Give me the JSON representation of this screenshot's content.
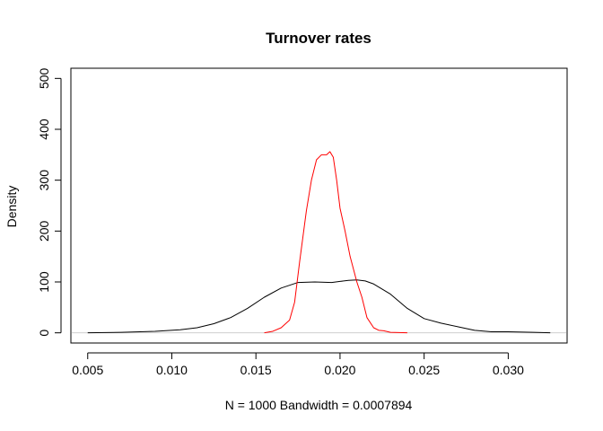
{
  "chart_data": {
    "type": "line",
    "title": "Turnover rates",
    "xlabel": "N = 1000   Bandwidth = 0.0007894",
    "ylabel": "Density",
    "xlim": [
      0.004,
      0.0335
    ],
    "ylim": [
      -20,
      520
    ],
    "x_ticks": [
      0.005,
      0.01,
      0.015,
      0.02,
      0.025,
      0.03
    ],
    "x_tick_labels": [
      "0.005",
      "0.010",
      "0.015",
      "0.020",
      "0.025",
      "0.030"
    ],
    "y_ticks": [
      0,
      100,
      200,
      300,
      400,
      500
    ],
    "y_tick_labels": [
      "0",
      "100",
      "200",
      "300",
      "400",
      "500"
    ],
    "zero_line": true,
    "grid": false,
    "series": [
      {
        "color": "#000000",
        "x": [
          0.005,
          0.007,
          0.009,
          0.0105,
          0.0115,
          0.0125,
          0.0135,
          0.0145,
          0.0155,
          0.0165,
          0.0175,
          0.0185,
          0.0195,
          0.02,
          0.0205,
          0.021,
          0.0215,
          0.022,
          0.023,
          0.024,
          0.025,
          0.026,
          0.027,
          0.028,
          0.029,
          0.03,
          0.0315,
          0.0325
        ],
        "y": [
          0,
          1,
          3,
          6,
          10,
          18,
          30,
          48,
          70,
          88,
          99,
          100,
          99,
          101,
          103,
          104,
          102,
          96,
          76,
          48,
          28,
          19,
          12,
          5,
          2,
          2,
          1,
          0
        ]
      },
      {
        "color": "#ff0000",
        "x": [
          0.0155,
          0.016,
          0.0165,
          0.017,
          0.0173,
          0.0176,
          0.018,
          0.0183,
          0.0186,
          0.0189,
          0.0192,
          0.0194,
          0.0196,
          0.0198,
          0.02,
          0.0203,
          0.0206,
          0.021,
          0.0213,
          0.0216,
          0.022,
          0.0223,
          0.0226,
          0.023,
          0.024
        ],
        "y": [
          0,
          3,
          10,
          25,
          60,
          140,
          240,
          300,
          340,
          350,
          350,
          356,
          345,
          300,
          245,
          200,
          150,
          100,
          70,
          30,
          10,
          5,
          4,
          1,
          0
        ]
      }
    ]
  }
}
